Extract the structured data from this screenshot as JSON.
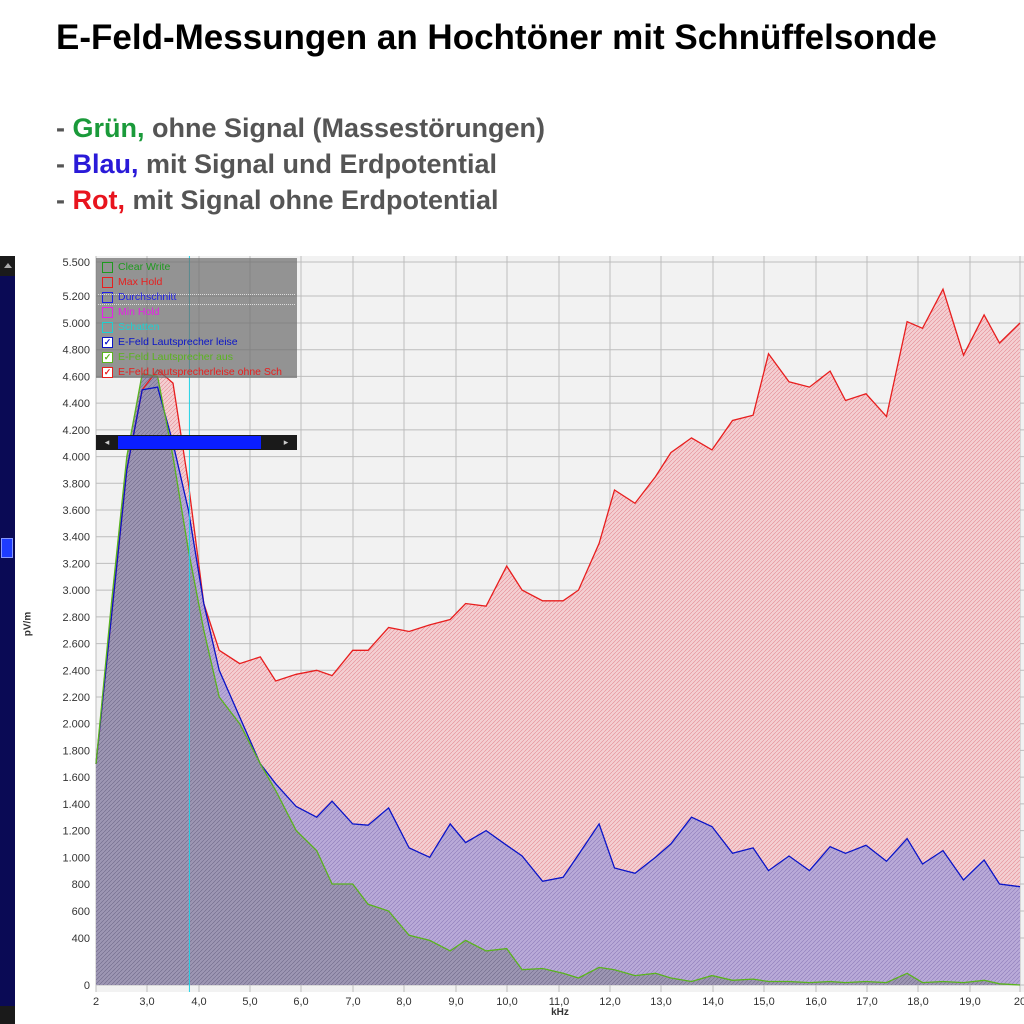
{
  "title": "E-Feld-Messungen an Hochtöner mit Schnüffelsonde",
  "bullets": [
    {
      "prefix": "- ",
      "keyword": "Grün,",
      "rest": " ohne Signal (Massestörungen)",
      "color": "#1a9a3a"
    },
    {
      "prefix": "- ",
      "keyword": "Blau,",
      "rest": " mit Signal und Erdpotential",
      "color": "#2a1ad8"
    },
    {
      "prefix": "- ",
      "keyword": "Rot,",
      "rest": " mit Signal ohne Erdpotential",
      "color": "#e8141e"
    }
  ],
  "legend": {
    "items": [
      {
        "label": "Clear Write",
        "color": "#1e9a1e",
        "checked": false
      },
      {
        "label": "Max Hold",
        "color": "#e81e1e",
        "checked": false
      },
      {
        "label": "Durchschnitt",
        "color": "#1e1ee8",
        "checked": false
      },
      {
        "label": "Min Hold",
        "color": "#e81ee8",
        "checked": false
      },
      {
        "label": "Schatten",
        "color": "#1ed0d0",
        "checked": false
      },
      {
        "label": "E-Feld Lautsprecher leise",
        "color": "#0a14c8",
        "checked": true
      },
      {
        "label": "E-Feld Lautsprecher aus",
        "color": "#5ab41e",
        "checked": true
      },
      {
        "label": "E-Feld Lautsprecherleise ohne Sch",
        "color": "#e81e1e",
        "checked": true
      }
    ],
    "check_mark": "✓",
    "slider_left": "◂",
    "slider_right": "▸"
  },
  "chart_data": {
    "type": "area",
    "xlabel": "kHz",
    "ylabel": "pV/m",
    "xlim": [
      2,
      20
    ],
    "ylim": [
      0,
      5500
    ],
    "x_ticks": [
      "2",
      "3,0",
      "4,0",
      "5,0",
      "6,0",
      "7,0",
      "8,0",
      "9,0",
      "10,0",
      "11,0",
      "12,0",
      "13,0",
      "14,0",
      "15,0",
      "16,0",
      "17,0",
      "18,0",
      "19,0",
      "20"
    ],
    "y_ticks": [
      {
        "v": 0,
        "label": "0"
      },
      {
        "v": 400,
        "label": "400"
      },
      {
        "v": 600,
        "label": "600"
      },
      {
        "v": 800,
        "label": "800"
      },
      {
        "v": 1000,
        "label": "1.000"
      },
      {
        "v": 1200,
        "label": "1.200"
      },
      {
        "v": 1400,
        "label": "1.400"
      },
      {
        "v": 1600,
        "label": "1.600"
      },
      {
        "v": 1800,
        "label": "1.800"
      },
      {
        "v": 2000,
        "label": "2.000"
      },
      {
        "v": 2200,
        "label": "2.200"
      },
      {
        "v": 2400,
        "label": "2.400"
      },
      {
        "v": 2600,
        "label": "2.600"
      },
      {
        "v": 2800,
        "label": "2.800"
      },
      {
        "v": 3000,
        "label": "3.000"
      },
      {
        "v": 3200,
        "label": "3.200"
      },
      {
        "v": 3400,
        "label": "3.400"
      },
      {
        "v": 3600,
        "label": "3.600"
      },
      {
        "v": 3800,
        "label": "3.800"
      },
      {
        "v": 4000,
        "label": "4.000"
      },
      {
        "v": 4200,
        "label": "4.200"
      },
      {
        "v": 4400,
        "label": "4.400"
      },
      {
        "v": 4600,
        "label": "4.600"
      },
      {
        "v": 4800,
        "label": "4.800"
      },
      {
        "v": 5000,
        "label": "5.000"
      },
      {
        "v": 5200,
        "label": "5.200"
      },
      {
        "v": 5500,
        "label": "5.500"
      }
    ],
    "grid": true,
    "legend_position": "top-left",
    "marker_x": 3.82,
    "marker_color": "#22d3e6",
    "series": [
      {
        "name": "E-Feld Lautsprecherleise ohne Sch",
        "color": "#e81e1e",
        "fill": "#f2c4c8",
        "x": [
          2.0,
          2.3,
          2.6,
          2.9,
          3.2,
          3.5,
          3.8,
          4.1,
          4.4,
          4.8,
          5.2,
          5.5,
          5.9,
          6.3,
          6.6,
          7.0,
          7.3,
          7.7,
          8.1,
          8.5,
          8.9,
          9.2,
          9.6,
          10.0,
          10.3,
          10.7,
          11.1,
          11.4,
          11.8,
          12.1,
          12.5,
          12.9,
          13.2,
          13.6,
          14.0,
          14.4,
          14.8,
          15.1,
          15.5,
          15.9,
          16.3,
          16.6,
          17.0,
          17.4,
          17.8,
          18.1,
          18.5,
          18.9,
          19.3,
          19.6,
          20.0
        ],
        "y": [
          1700,
          2800,
          3900,
          4500,
          4650,
          4550,
          3800,
          2900,
          2550,
          2450,
          2500,
          2320,
          2370,
          2400,
          2360,
          2550,
          2550,
          2720,
          2690,
          2740,
          2780,
          2900,
          2880,
          3180,
          3000,
          2920,
          2920,
          3000,
          3350,
          3750,
          3650,
          3850,
          4030,
          4140,
          4050,
          4270,
          4310,
          4770,
          4560,
          4520,
          4640,
          4420,
          4470,
          4300,
          5010,
          4960,
          5260,
          4760,
          5060,
          4850,
          5000
        ]
      },
      {
        "name": "E-Feld Lautsprecher leise",
        "color": "#0a14c8",
        "fill": "#b7a8d9",
        "x": [
          2.0,
          2.3,
          2.6,
          2.9,
          3.2,
          3.5,
          3.8,
          4.1,
          4.4,
          4.8,
          5.2,
          5.5,
          5.9,
          6.3,
          6.6,
          7.0,
          7.3,
          7.7,
          8.1,
          8.5,
          8.9,
          9.2,
          9.6,
          10.0,
          10.3,
          10.7,
          11.1,
          11.4,
          11.8,
          12.1,
          12.5,
          12.9,
          13.2,
          13.6,
          14.0,
          14.4,
          14.8,
          15.1,
          15.5,
          15.9,
          16.3,
          16.6,
          17.0,
          17.4,
          17.8,
          18.1,
          18.5,
          18.9,
          19.3,
          19.6,
          20.0
        ],
        "y": [
          1700,
          2800,
          3900,
          4500,
          4520,
          4100,
          3600,
          2900,
          2400,
          2050,
          1700,
          1550,
          1380,
          1300,
          1420,
          1250,
          1240,
          1370,
          1070,
          1000,
          1250,
          1110,
          1200,
          1090,
          1010,
          820,
          850,
          1020,
          1250,
          920,
          880,
          1000,
          1100,
          1300,
          1230,
          1030,
          1070,
          900,
          1010,
          900,
          1080,
          1030,
          1090,
          970,
          1140,
          950,
          1050,
          830,
          980,
          800,
          780
        ]
      },
      {
        "name": "E-Feld Lautsprecher aus",
        "color": "#5ab41e",
        "fill": "#9a92b0",
        "x": [
          2.0,
          2.3,
          2.6,
          2.9,
          3.2,
          3.5,
          3.8,
          4.1,
          4.4,
          4.8,
          5.2,
          5.5,
          5.9,
          6.3,
          6.6,
          7.0,
          7.3,
          7.7,
          8.1,
          8.5,
          8.9,
          9.2,
          9.6,
          10.0,
          10.3,
          10.7,
          11.1,
          11.4,
          11.8,
          12.1,
          12.5,
          12.9,
          13.2,
          13.6,
          14.0,
          14.4,
          14.8,
          15.1,
          15.5,
          15.9,
          16.3,
          16.6,
          17.0,
          17.4,
          17.8,
          18.1,
          18.5,
          18.9,
          19.3,
          19.6,
          20.0
        ],
        "y": [
          1700,
          2900,
          4000,
          4620,
          4600,
          4000,
          3300,
          2700,
          2200,
          2000,
          1700,
          1500,
          1200,
          1050,
          800,
          800,
          650,
          600,
          420,
          380,
          290,
          380,
          290,
          310,
          130,
          140,
          100,
          60,
          150,
          130,
          80,
          100,
          60,
          30,
          80,
          40,
          50,
          30,
          30,
          20,
          30,
          20,
          30,
          20,
          100,
          20,
          30,
          20,
          40,
          10,
          0
        ]
      }
    ]
  }
}
